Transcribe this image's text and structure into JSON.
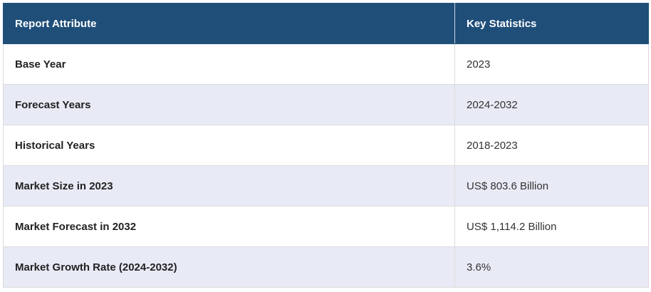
{
  "table": {
    "header": [
      "Report Attribute",
      "Key Statistics"
    ],
    "rows": [
      [
        "Base Year",
        "2023"
      ],
      [
        "Forecast Years",
        "2024-2032"
      ],
      [
        "Historical Years",
        "2018-2023"
      ],
      [
        "Market Size in 2023",
        "US$ 803.6 Billion"
      ],
      [
        "Market Forecast in 2032",
        "US$ 1,114.2 Billion"
      ],
      [
        "Market Growth Rate (2024-2032)",
        "3.6%"
      ]
    ]
  }
}
